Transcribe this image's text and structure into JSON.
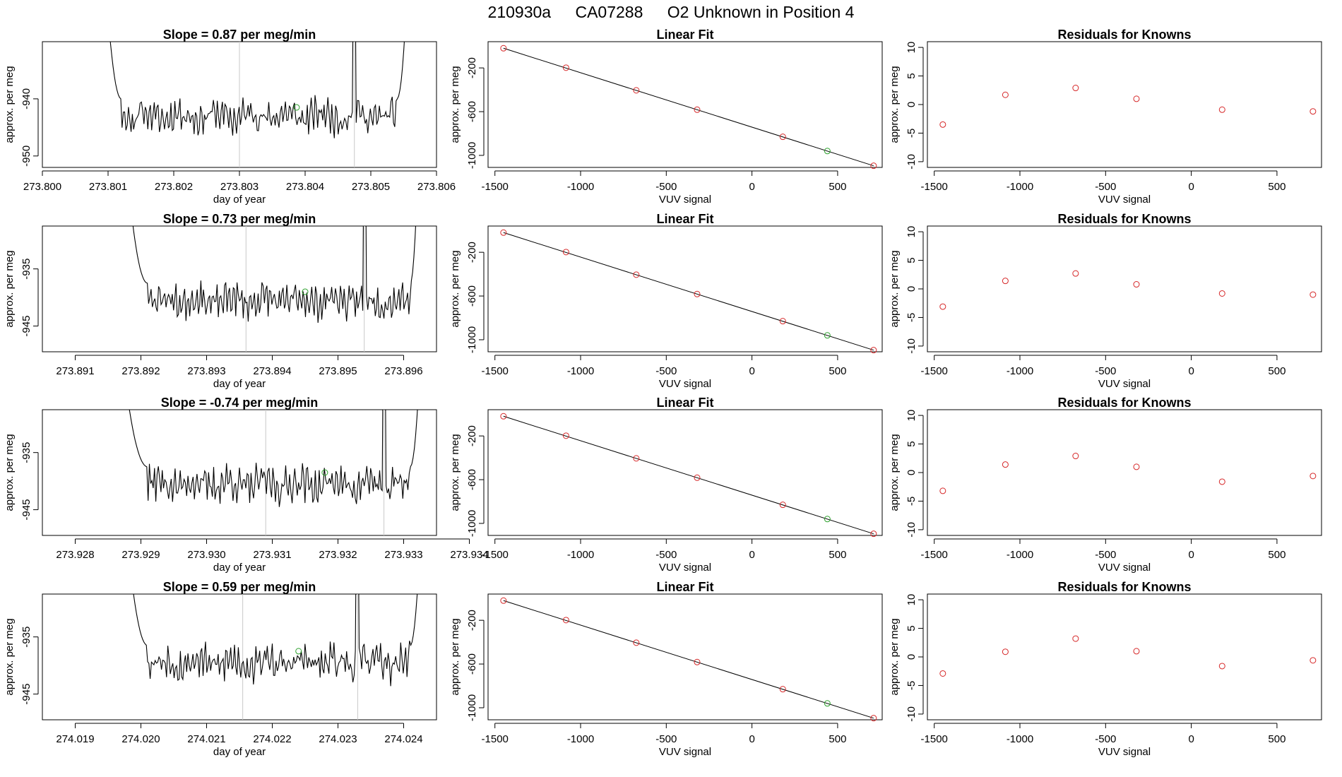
{
  "header": {
    "run_id": "210930a",
    "cylinder": "CA07288",
    "description": "O2 Unknown in Position  4"
  },
  "style": {
    "trace_color": "#000000",
    "known_color": "#d62728",
    "unknown_color": "#2ca02c",
    "cursor_color": "#c8c8c8"
  },
  "chart_data": [
    {
      "type": "line",
      "panel": "trace-row-1",
      "title": "Slope =  0.87  per meg/min",
      "xlabel": "day of year",
      "ylabel": "approx. per meg",
      "xlim": [
        273.8,
        273.806
      ],
      "ylim": [
        -952,
        -930
      ],
      "xticks": [
        "273.800",
        "273.801",
        "273.802",
        "273.803",
        "273.804",
        "273.805",
        "273.806"
      ],
      "yticks": [
        "-950",
        "-940"
      ],
      "cursor_lines_x": [
        273.803,
        273.80475
      ],
      "trace": {
        "x_start": 273.8009,
        "x_end": 273.8056,
        "baseline": -943,
        "amplitude": 2.2,
        "seed": 11,
        "edge_rise_left": 273.8012,
        "edge_rise_right": 273.8054,
        "spike_x": 273.80475
      },
      "unknown_point": {
        "x": 273.80387,
        "y": -941.5
      }
    },
    {
      "type": "line",
      "panel": "trace-row-2",
      "title": "Slope =  0.73  per meg/min",
      "xlabel": "day of year",
      "ylabel": "approx. per meg",
      "xlim": [
        273.8905,
        273.8965
      ],
      "ylim": [
        -949.5,
        -927.5
      ],
      "xticks": [
        "273.891",
        "273.892",
        "273.893",
        "273.894",
        "273.895",
        "273.896"
      ],
      "yticks": [
        "-945",
        "-935"
      ],
      "cursor_lines_x": [
        273.8936,
        273.8954
      ],
      "trace": {
        "x_start": 273.8917,
        "x_end": 273.89625,
        "baseline": -940.5,
        "amplitude": 2.2,
        "seed": 23,
        "edge_rise_left": 273.8921,
        "edge_rise_right": 273.8961,
        "spike_x": 273.8954
      },
      "unknown_point": {
        "x": 273.8945,
        "y": -939.0
      }
    },
    {
      "type": "line",
      "panel": "trace-row-3",
      "title": "Slope =  -0.74  per meg/min",
      "xlabel": "day of year",
      "ylabel": "approx. per meg",
      "xlim": [
        273.9275,
        273.9335
      ],
      "ylim": [
        -949.5,
        -927.5
      ],
      "xticks": [
        "273.928",
        "273.929",
        "273.930",
        "273.931",
        "273.932",
        "273.933",
        "273.934"
      ],
      "yticks": [
        "-945",
        "-935"
      ],
      "cursor_lines_x": [
        273.9309,
        273.9327
      ],
      "trace": {
        "x_start": 273.9286,
        "x_end": 273.9333,
        "baseline": -940.5,
        "amplitude": 2.4,
        "seed": 37,
        "edge_rise_left": 273.9291,
        "edge_rise_right": 273.9331,
        "spike_x": 273.9327
      },
      "unknown_point": {
        "x": 273.9318,
        "y": -938.5
      }
    },
    {
      "type": "line",
      "panel": "trace-row-4",
      "title": "Slope =  0.59  per meg/min",
      "xlabel": "day of year",
      "ylabel": "approx. per meg",
      "xlim": [
        274.0185,
        274.0245
      ],
      "ylim": [
        -949.5,
        -927.5
      ],
      "xticks": [
        "274.019",
        "274.020",
        "274.021",
        "274.022",
        "274.023",
        "274.024"
      ],
      "yticks": [
        "-945",
        "-935"
      ],
      "cursor_lines_x": [
        274.02155,
        274.0233
      ],
      "trace": {
        "x_start": 274.0197,
        "x_end": 274.0243,
        "baseline": -939.5,
        "amplitude": 2.3,
        "seed": 53,
        "edge_rise_left": 274.0201,
        "edge_rise_right": 274.0241,
        "spike_x": 274.0233
      },
      "unknown_point": {
        "x": 274.0224,
        "y": -937.5
      }
    },
    {
      "type": "scatter",
      "panel": "fit-row-1",
      "title": "Linear Fit",
      "xlabel": "VUV signal",
      "ylabel": "approx. per meg",
      "xlim": [
        -1540,
        760
      ],
      "ylim": [
        -1110,
        40
      ],
      "xticks": [
        -1500,
        -1000,
        -500,
        0,
        500
      ],
      "yticks": [
        -200,
        -600,
        -1000
      ],
      "fit_line": {
        "x": [
          -1450,
          710
        ],
        "y": [
          -20,
          -1095
        ]
      },
      "knowns": {
        "x": [
          -1450,
          -1085,
          -675,
          -320,
          180,
          710
        ],
        "y": [
          -20,
          -198,
          -405,
          -582,
          -830,
          -1095
        ]
      },
      "unknown": {
        "x": 440,
        "y": -960
      }
    },
    {
      "type": "scatter",
      "panel": "fit-row-2",
      "title": "Linear Fit",
      "xlabel": "VUV signal",
      "ylabel": "approx. per meg",
      "xlim": [
        -1540,
        760
      ],
      "ylim": [
        -1110,
        40
      ],
      "xticks": [
        -1500,
        -1000,
        -500,
        0,
        500
      ],
      "yticks": [
        -200,
        -600,
        -1000
      ],
      "fit_line": {
        "x": [
          -1450,
          710
        ],
        "y": [
          -20,
          -1095
        ]
      },
      "knowns": {
        "x": [
          -1450,
          -1085,
          -675,
          -320,
          180,
          710
        ],
        "y": [
          -20,
          -198,
          -405,
          -582,
          -830,
          -1095
        ]
      },
      "unknown": {
        "x": 440,
        "y": -960
      }
    },
    {
      "type": "scatter",
      "panel": "fit-row-3",
      "title": "Linear Fit",
      "xlabel": "VUV signal",
      "ylabel": "approx. per meg",
      "xlim": [
        -1540,
        760
      ],
      "ylim": [
        -1110,
        40
      ],
      "xticks": [
        -1500,
        -1000,
        -500,
        0,
        500
      ],
      "yticks": [
        -200,
        -600,
        -1000
      ],
      "fit_line": {
        "x": [
          -1450,
          710
        ],
        "y": [
          -20,
          -1095
        ]
      },
      "knowns": {
        "x": [
          -1450,
          -1085,
          -675,
          -320,
          180,
          710
        ],
        "y": [
          -20,
          -198,
          -405,
          -582,
          -830,
          -1095
        ]
      },
      "unknown": {
        "x": 440,
        "y": -960
      }
    },
    {
      "type": "scatter",
      "panel": "fit-row-4",
      "title": "Linear Fit",
      "xlabel": "VUV signal",
      "ylabel": "approx. per meg",
      "xlim": [
        -1540,
        760
      ],
      "ylim": [
        -1110,
        40
      ],
      "xticks": [
        -1500,
        -1000,
        -500,
        0,
        500
      ],
      "yticks": [
        -200,
        -600,
        -1000
      ],
      "fit_line": {
        "x": [
          -1450,
          710
        ],
        "y": [
          -20,
          -1095
        ]
      },
      "knowns": {
        "x": [
          -1450,
          -1085,
          -675,
          -320,
          180,
          710
        ],
        "y": [
          -20,
          -198,
          -405,
          -582,
          -830,
          -1095
        ]
      },
      "unknown": {
        "x": 440,
        "y": -960
      }
    },
    {
      "type": "scatter",
      "panel": "resid-row-1",
      "title": "Residuals for Knowns",
      "xlabel": "VUV signal",
      "ylabel": "approx. per meg",
      "xlim": [
        -1540,
        760
      ],
      "ylim": [
        -11,
        11
      ],
      "xticks": [
        -1500,
        -1000,
        -500,
        0,
        500
      ],
      "yticks": [
        10,
        5,
        0,
        -5,
        -10
      ],
      "x": [
        -1450,
        -1085,
        -675,
        -320,
        180,
        710
      ],
      "y": [
        -3.5,
        1.7,
        2.9,
        1.0,
        -0.9,
        -1.2
      ]
    },
    {
      "type": "scatter",
      "panel": "resid-row-2",
      "title": "Residuals for Knowns",
      "xlabel": "VUV signal",
      "ylabel": "approx. per meg",
      "xlim": [
        -1540,
        760
      ],
      "ylim": [
        -11,
        11
      ],
      "xticks": [
        -1500,
        -1000,
        -500,
        0,
        500
      ],
      "yticks": [
        10,
        5,
        0,
        -5,
        -10
      ],
      "x": [
        -1450,
        -1085,
        -675,
        -320,
        180,
        710
      ],
      "y": [
        -3.1,
        1.4,
        2.7,
        0.8,
        -0.8,
        -1.0
      ]
    },
    {
      "type": "scatter",
      "panel": "resid-row-3",
      "title": "Residuals for Knowns",
      "xlabel": "VUV signal",
      "ylabel": "approx. per meg",
      "xlim": [
        -1540,
        760
      ],
      "ylim": [
        -11,
        11
      ],
      "xticks": [
        -1500,
        -1000,
        -500,
        0,
        500
      ],
      "yticks": [
        10,
        5,
        0,
        -5,
        -10
      ],
      "x": [
        -1450,
        -1085,
        -675,
        -320,
        180,
        710
      ],
      "y": [
        -3.2,
        1.4,
        2.9,
        1.0,
        -1.6,
        -0.6
      ]
    },
    {
      "type": "scatter",
      "panel": "resid-row-4",
      "title": "Residuals for Knowns",
      "xlabel": "VUV signal",
      "ylabel": "approx. per meg",
      "xlim": [
        -1540,
        760
      ],
      "ylim": [
        -11,
        11
      ],
      "xticks": [
        -1500,
        -1000,
        -500,
        0,
        500
      ],
      "yticks": [
        10,
        5,
        0,
        -5,
        -10
      ],
      "x": [
        -1450,
        -1085,
        -675,
        -320,
        180,
        710
      ],
      "y": [
        -2.9,
        0.9,
        3.2,
        1.0,
        -1.6,
        -0.6
      ]
    }
  ]
}
